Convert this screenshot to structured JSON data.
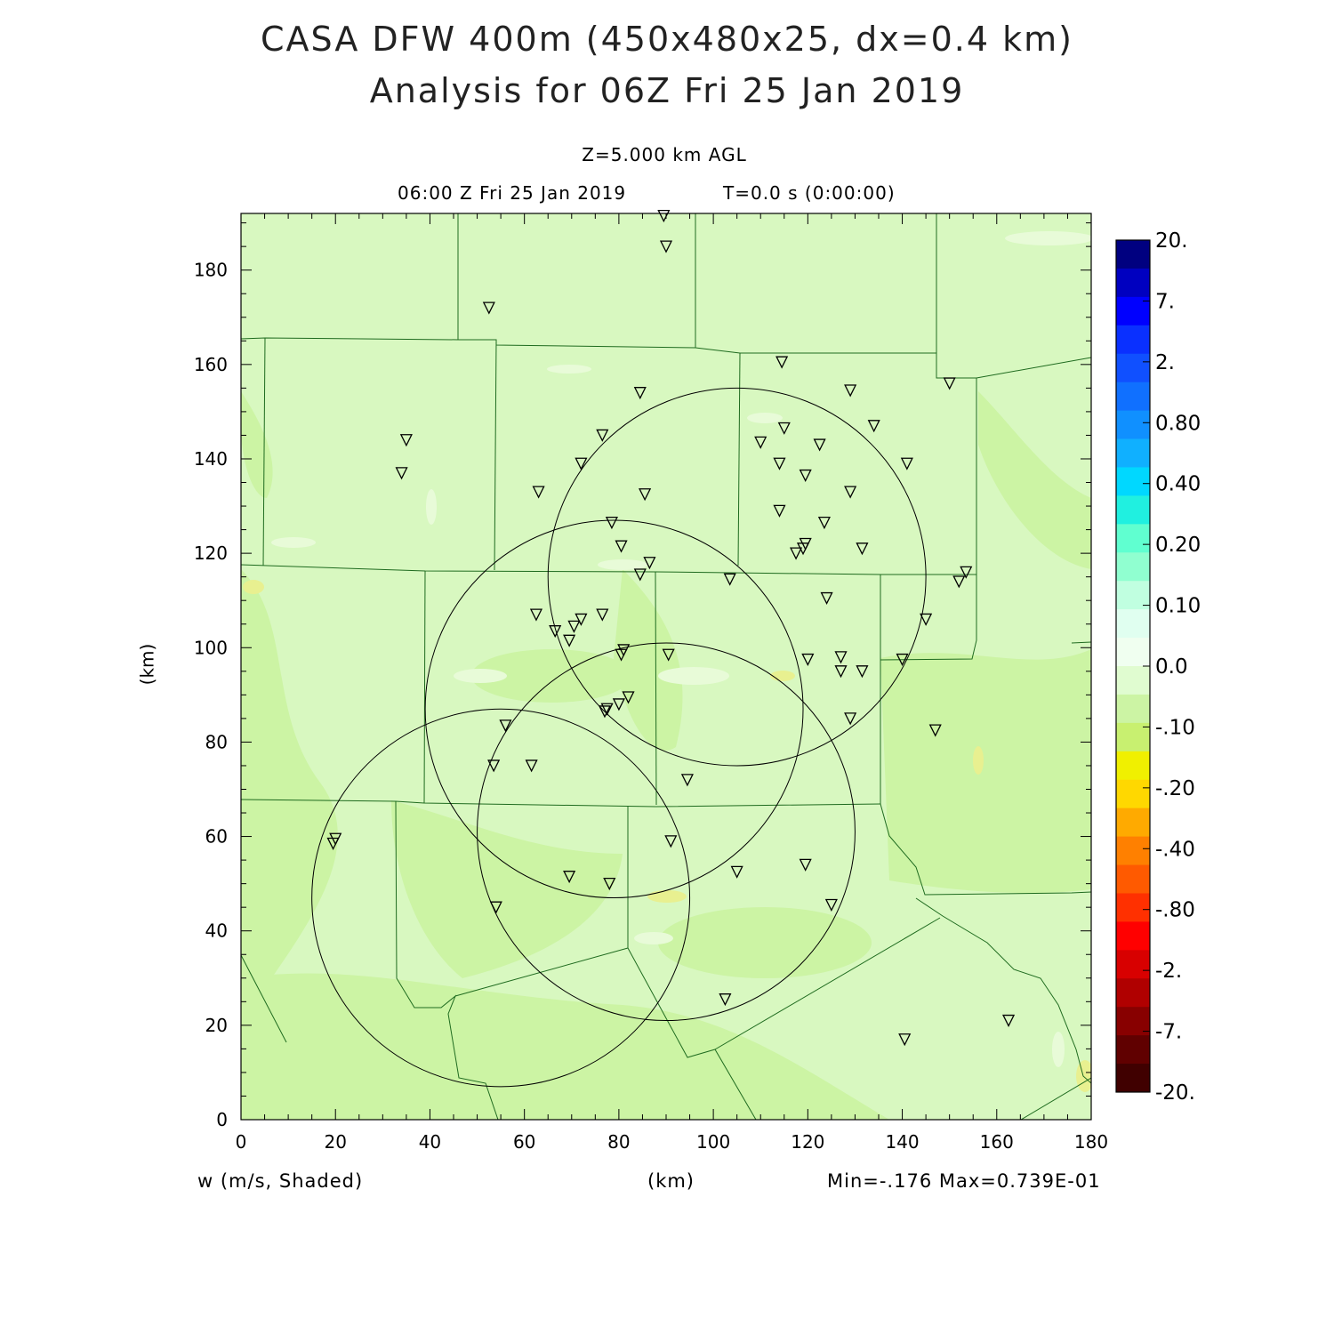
{
  "title_line1": "CASA DFW 400m (450x480x25, dx=0.4 km)",
  "title_line2": "Analysis for 06Z Fri 25 Jan 2019",
  "level_label": "Z=5.000 km AGL",
  "valid_time": "06:00 Z Fri 25 Jan 2019",
  "forecast_time": "T=0.0 s (0:00:00)",
  "variable_label": "w (m/s, Shaded)",
  "x_axis_label": "(km)",
  "y_axis_label": "(km)",
  "min_max_label": "Min=-.176 Max=0.739E-01",
  "colors": {
    "field_base": "#d8f8c0",
    "field_neg_light": "#e8fbd8",
    "field_neg_mid": "#ccf4a4",
    "field_neg_strong": "#e8f090",
    "boundary": "#1f6b1f"
  },
  "chart_data": {
    "type": "heatmap",
    "xlim": [
      0,
      180
    ],
    "ylim": [
      0,
      192
    ],
    "x_ticks": [
      "0",
      "20",
      "40",
      "60",
      "80",
      "100",
      "120",
      "140",
      "160",
      "180"
    ],
    "y_ticks": [
      "0",
      "20",
      "40",
      "60",
      "80",
      "100",
      "120",
      "140",
      "160",
      "180"
    ],
    "colorbar": {
      "labels": [
        "20.",
        "7.",
        "2.",
        "0.80",
        "0.40",
        "0.20",
        "0.10",
        "0.0",
        "-.10",
        "-.20",
        "-.40",
        "-.80",
        "-2.",
        "-7.",
        "-20."
      ],
      "colors": [
        "#000080",
        "#0000c0",
        "#0000ff",
        "#0a30ff",
        "#1050ff",
        "#1070ff",
        "#1090ff",
        "#10b0ff",
        "#00d8ff",
        "#20f0e0",
        "#60ffd0",
        "#90ffd0",
        "#c0ffe0",
        "#e0fff0",
        "#f0fff0",
        "#e0fcd0",
        "#ccf4a4",
        "#c8f070",
        "#f0f000",
        "#ffd800",
        "#ffaa00",
        "#ff8000",
        "#ff5a00",
        "#ff3000",
        "#ff0000",
        "#d80000",
        "#b00000",
        "#880000",
        "#600000",
        "#400000"
      ]
    },
    "radar_rings": [
      {
        "cx": 105,
        "cy": 115,
        "r": 40
      },
      {
        "cx": 79,
        "cy": 87,
        "r": 40
      },
      {
        "cx": 90,
        "cy": 61,
        "r": 40
      },
      {
        "cx": 55,
        "cy": 47,
        "r": 40
      }
    ],
    "stations": [
      [
        89.5,
        191.5
      ],
      [
        90,
        185
      ],
      [
        52.5,
        172
      ],
      [
        114.5,
        160.5
      ],
      [
        150,
        156
      ],
      [
        129,
        154.5
      ],
      [
        84.5,
        154
      ],
      [
        134,
        147
      ],
      [
        35,
        144
      ],
      [
        76.5,
        145
      ],
      [
        115,
        146.5
      ],
      [
        110,
        143.5
      ],
      [
        122.5,
        143
      ],
      [
        141,
        139
      ],
      [
        72,
        139
      ],
      [
        114,
        139
      ],
      [
        34,
        137
      ],
      [
        119.5,
        136.5
      ],
      [
        63,
        133
      ],
      [
        85.5,
        132.5
      ],
      [
        129,
        133
      ],
      [
        114,
        129
      ],
      [
        78.5,
        126.5
      ],
      [
        123.5,
        126.5
      ],
      [
        80.5,
        121.5
      ],
      [
        119.5,
        122
      ],
      [
        119,
        121
      ],
      [
        131.5,
        121
      ],
      [
        117.5,
        120
      ],
      [
        86.5,
        118
      ],
      [
        84.5,
        115.5
      ],
      [
        153.5,
        116
      ],
      [
        103.5,
        114.5
      ],
      [
        152,
        114
      ],
      [
        124,
        110.5
      ],
      [
        62.5,
        107
      ],
      [
        76.5,
        107
      ],
      [
        145,
        106
      ],
      [
        72,
        106
      ],
      [
        70.5,
        104.5
      ],
      [
        66.5,
        103.5
      ],
      [
        69.5,
        101.5
      ],
      [
        81,
        99.5
      ],
      [
        80.5,
        98.5
      ],
      [
        90.5,
        98.5
      ],
      [
        120,
        97.5
      ],
      [
        127,
        98
      ],
      [
        140,
        97.5
      ],
      [
        127,
        95
      ],
      [
        131.5,
        95
      ],
      [
        82,
        89.5
      ],
      [
        80,
        88
      ],
      [
        77.5,
        87
      ],
      [
        77,
        86.5
      ],
      [
        129,
        85
      ],
      [
        56,
        83.5
      ],
      [
        147,
        82.5
      ],
      [
        53.5,
        75
      ],
      [
        61.5,
        75
      ],
      [
        94.5,
        72
      ],
      [
        20,
        59.5
      ],
      [
        19.5,
        58.5
      ],
      [
        91,
        59
      ],
      [
        119.5,
        54
      ],
      [
        105,
        52.5
      ],
      [
        69.5,
        51.5
      ],
      [
        78,
        50
      ],
      [
        125,
        45.5
      ],
      [
        54,
        45
      ],
      [
        102.5,
        25.5
      ],
      [
        162.5,
        21
      ],
      [
        140.5,
        17
      ]
    ]
  }
}
